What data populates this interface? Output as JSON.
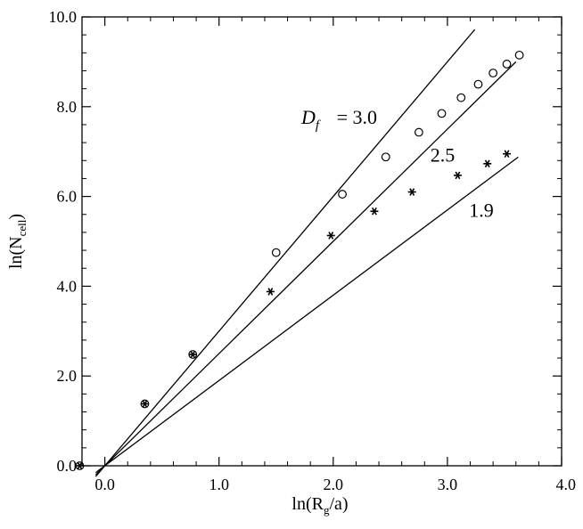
{
  "chart_data": {
    "type": "scatter",
    "xlim": [
      -0.2,
      4.0
    ],
    "ylim": [
      0.0,
      10.0
    ],
    "x_ticks": [
      {
        "value": 0.0,
        "label": "0.0"
      },
      {
        "value": 1.0,
        "label": "1.0"
      },
      {
        "value": 2.0,
        "label": "2.0"
      },
      {
        "value": 3.0,
        "label": "3.0"
      },
      {
        "value": 4.0,
        "label": "4.0"
      }
    ],
    "y_ticks": [
      {
        "value": 0.0,
        "label": "0.0"
      },
      {
        "value": 2.0,
        "label": "2.0"
      },
      {
        "value": 4.0,
        "label": "4.0"
      },
      {
        "value": 6.0,
        "label": "6.0"
      },
      {
        "value": 8.0,
        "label": "8.0"
      },
      {
        "value": 10.0,
        "label": "10.0"
      }
    ],
    "x_minor_step": 0.2,
    "y_minor_step": 0.4,
    "xlabel": {
      "main": "ln(R",
      "sub": "g",
      "tail": "/a)"
    },
    "ylabel": {
      "main": "ln(N",
      "sub": "cell",
      "tail": ")"
    },
    "grid": false,
    "series": [
      {
        "marker": "circle",
        "x": [
          -0.22,
          0.35,
          0.77,
          1.5,
          2.08,
          2.46,
          2.75,
          2.95,
          3.12,
          3.27,
          3.4,
          3.52,
          3.63
        ],
        "y": [
          0.0,
          1.38,
          2.48,
          4.75,
          6.05,
          6.88,
          7.43,
          7.85,
          8.2,
          8.5,
          8.75,
          8.95,
          9.15
        ]
      },
      {
        "marker": "star",
        "x": [
          -0.22,
          0.35,
          0.77,
          1.45,
          1.98,
          2.36,
          2.69,
          3.09,
          3.35,
          3.52
        ],
        "y": [
          0.0,
          1.38,
          2.48,
          3.88,
          5.13,
          5.67,
          6.1,
          6.47,
          6.73,
          6.95
        ]
      }
    ],
    "reference_lines": [
      {
        "slope": 3.0,
        "x_start": -0.08,
        "x_end": 3.24,
        "label": "= 3.0"
      },
      {
        "slope": 2.5,
        "x_start": -0.08,
        "x_end": 3.6,
        "label": "2.5"
      },
      {
        "slope": 1.9,
        "x_start": -0.08,
        "x_end": 3.62,
        "label": "1.9"
      }
    ],
    "annotations": [
      {
        "id": "df-symbol",
        "text": "D",
        "sub": "f",
        "x": 1.72,
        "y": 7.62
      },
      {
        "id": "df-30",
        "text": "= 3.0",
        "x": 2.03,
        "y": 7.62
      },
      {
        "id": "df-25",
        "text": "2.5",
        "x": 2.85,
        "y": 6.78
      },
      {
        "id": "df-19",
        "text": "1.9",
        "x": 3.19,
        "y": 5.55
      }
    ]
  }
}
